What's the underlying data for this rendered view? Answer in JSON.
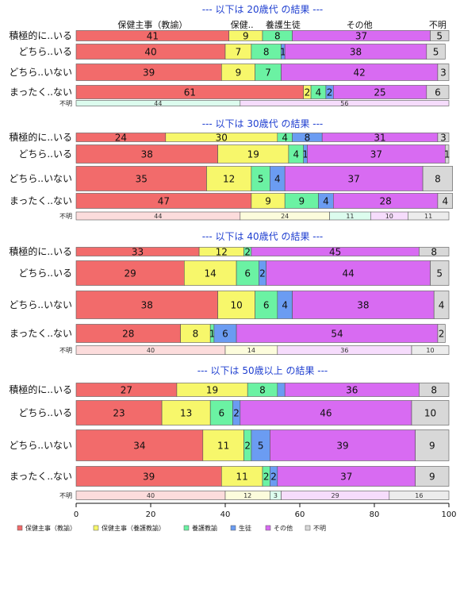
{
  "chart_data": {
    "type": "bar",
    "orientation": "horizontal-stacked",
    "x_ticks": [
      "0",
      "20",
      "40",
      "60",
      "80",
      "100"
    ],
    "xlim": [
      0,
      100
    ],
    "legend_position": "bottom",
    "categories": [
      "保健主事（教諭）",
      "保健主事（養護教諭）",
      "養護教諭",
      "生徒",
      "その他",
      "不明"
    ],
    "column_headers": [
      {
        "label": "保健主事（教諭）",
        "at": 20.5
      },
      {
        "label": "保健..",
        "at": 44.5
      },
      {
        "label": "養護生徒",
        "at": 55.5
      },
      {
        "label": "その他",
        "at": 76
      },
      {
        "label": "不明",
        "at": 97
      }
    ],
    "colors": [
      "#f26b6b",
      "#f7f76b",
      "#6bf2a3",
      "#6b9cf2",
      "#d86bf2",
      "#d8d8d8"
    ],
    "small_colors": [
      "#fcdcdc",
      "#fcfcdc",
      "#dcfcee",
      "#dce6fc",
      "#f6dcfc",
      "#ececec"
    ],
    "panels": [
      {
        "title": "--- 以下は 20歳代 の結果 ---",
        "rows": [
          {
            "label": "積極的に..いる",
            "values": [
              41,
              9,
              8,
              0,
              37,
              5
            ],
            "labels": [
              "41",
              "9",
              "8",
              "",
              "37",
              "5"
            ]
          },
          {
            "label": "どちら..いる",
            "values": [
              40,
              7,
              8,
              1,
              38,
              5
            ],
            "labels": [
              "40",
              "7",
              "8",
              "1",
              "38",
              "5"
            ]
          },
          {
            "label": "どちら..いない",
            "values": [
              39,
              9,
              7,
              0,
              42,
              3
            ],
            "labels": [
              "39",
              "9",
              "7",
              "",
              "42",
              "3"
            ]
          },
          {
            "label": "まったく..ない",
            "values": [
              61,
              2,
              4,
              2,
              25,
              6
            ],
            "labels": [
              "61",
              "2",
              "4",
              "2",
              "25",
              "6"
            ]
          }
        ],
        "unknown": {
          "label": "不明",
          "values": [
            0,
            0,
            44,
            0,
            56,
            0
          ],
          "labels": [
            "",
            "",
            "44",
            "",
            "56",
            ""
          ]
        }
      },
      {
        "title": "--- 以下は 30歳代 の結果 ---",
        "rows": [
          {
            "label": "積極的に..いる",
            "values": [
              24,
              30,
              4,
              8,
              31,
              3
            ],
            "labels": [
              "24",
              "30",
              "4",
              "8",
              "31",
              "3"
            ]
          },
          {
            "label": "どちら..いる",
            "values": [
              38,
              19,
              4,
              1,
              37,
              1
            ],
            "labels": [
              "38",
              "19",
              "4",
              "1",
              "37",
              "1"
            ]
          },
          {
            "label": "どちら..いない",
            "values": [
              35,
              12,
              5,
              4,
              37,
              8
            ],
            "labels": [
              "35",
              "12",
              "5",
              "4",
              "37",
              "8"
            ]
          },
          {
            "label": "まったく..ない",
            "values": [
              47,
              9,
              9,
              4,
              28,
              4
            ],
            "labels": [
              "47",
              "9",
              "9",
              "4",
              "28",
              "4"
            ]
          }
        ],
        "unknown": {
          "label": "不明",
          "values": [
            44,
            24,
            11,
            0,
            10,
            11
          ],
          "labels": [
            "44",
            "24",
            "11",
            "",
            "10",
            "11"
          ]
        }
      },
      {
        "title": "--- 以下は 40歳代 の結果 ---",
        "rows": [
          {
            "label": "積極的に..いる",
            "values": [
              33,
              12,
              2,
              0,
              45,
              8
            ],
            "labels": [
              "33",
              "12",
              "2",
              "",
              "45",
              "8"
            ]
          },
          {
            "label": "どちら..いる",
            "values": [
              29,
              14,
              6,
              2,
              44,
              5
            ],
            "labels": [
              "29",
              "14",
              "6",
              "2",
              "44",
              "5"
            ]
          },
          {
            "label": "どちら..いない",
            "values": [
              38,
              10,
              6,
              4,
              38,
              4
            ],
            "labels": [
              "38",
              "10",
              "6",
              "4",
              "38",
              "4"
            ]
          },
          {
            "label": "まったく..ない",
            "values": [
              28,
              8,
              1,
              6,
              54,
              2
            ],
            "labels": [
              "28",
              "8",
              "1",
              "6",
              "54",
              "2"
            ]
          }
        ],
        "unknown": {
          "label": "不明",
          "values": [
            40,
            14,
            0,
            0,
            36,
            10
          ],
          "labels": [
            "40",
            "14",
            "",
            "",
            "36",
            "10"
          ]
        }
      },
      {
        "title": "--- 以下は 50歳以上 の結果 ---",
        "rows": [
          {
            "label": "積極的に..いる",
            "values": [
              27,
              19,
              8,
              2,
              36,
              8
            ],
            "labels": [
              "27",
              "19",
              "8",
              "",
              "36",
              "8"
            ]
          },
          {
            "label": "どちら..いる",
            "values": [
              23,
              13,
              6,
              2,
              46,
              10
            ],
            "labels": [
              "23",
              "13",
              "6",
              "2",
              "46",
              "10"
            ]
          },
          {
            "label": "どちら..いない",
            "values": [
              34,
              11,
              2,
              5,
              39,
              9
            ],
            "labels": [
              "34",
              "11",
              "2",
              "5",
              "39",
              "9"
            ]
          },
          {
            "label": "まったく..ない",
            "values": [
              39,
              11,
              2,
              2,
              37,
              9
            ],
            "labels": [
              "39",
              "11",
              "2",
              "2",
              "37",
              "9"
            ]
          }
        ],
        "unknown": {
          "label": "不明",
          "values": [
            40,
            12,
            3,
            0,
            29,
            16
          ],
          "labels": [
            "40",
            "12",
            "3",
            "",
            "29",
            "16"
          ]
        }
      }
    ]
  }
}
